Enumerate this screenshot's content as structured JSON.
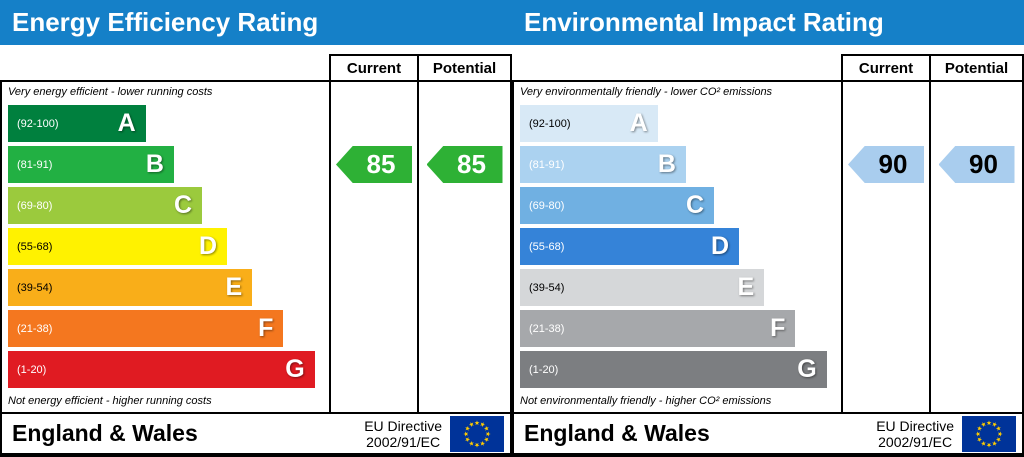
{
  "chart_data": [
    {
      "type": "bar",
      "title": "Energy Efficiency Rating",
      "categories": [
        "A (92-100)",
        "B (81-91)",
        "C (69-80)",
        "D (55-68)",
        "E (39-54)",
        "F (21-38)",
        "G (1-20)"
      ],
      "series": [
        {
          "name": "Current",
          "values": [
            85
          ],
          "band": "B"
        },
        {
          "name": "Potential",
          "values": [
            85
          ],
          "band": "B"
        }
      ],
      "ylim": [
        1,
        100
      ],
      "top_caption": "Very energy efficient - lower running costs",
      "bottom_caption": "Not energy efficient - higher running costs"
    },
    {
      "type": "bar",
      "title": "Environmental Impact Rating",
      "categories": [
        "A (92-100)",
        "B (81-91)",
        "C (69-80)",
        "D (55-68)",
        "E (39-54)",
        "F (21-38)",
        "G (1-20)"
      ],
      "series": [
        {
          "name": "Current",
          "values": [
            90
          ],
          "band": "B"
        },
        {
          "name": "Potential",
          "values": [
            90
          ],
          "band": "B"
        }
      ],
      "ylim": [
        1,
        100
      ],
      "top_caption": "Very environmentally friendly - lower CO² emissions",
      "bottom_caption": "Not environmentally friendly - higher CO² emissions"
    }
  ],
  "header_bg": "#1580c8",
  "panels": [
    {
      "title": "Energy Efficiency Rating",
      "col_current": "Current",
      "col_potential": "Potential",
      "top_caption": "Very energy efficient - lower running costs",
      "bottom_caption": "Not energy efficient - higher running costs",
      "bands": [
        {
          "range": "(92-100)",
          "letter": "A",
          "color": "#00803e",
          "range_color": "#ffffff",
          "letter_color": "#ffffff",
          "width_pct": 44
        },
        {
          "range": "(81-91)",
          "letter": "B",
          "color": "#22b043",
          "range_color": "#ffffff",
          "letter_color": "#ffffff",
          "width_pct": 53
        },
        {
          "range": "(69-80)",
          "letter": "C",
          "color": "#9bca3d",
          "range_color": "#ffffff",
          "letter_color": "#ffffff",
          "width_pct": 62
        },
        {
          "range": "(55-68)",
          "letter": "D",
          "color": "#fff200",
          "range_color": "#000000",
          "letter_color": "#ffffff",
          "width_pct": 70
        },
        {
          "range": "(39-54)",
          "letter": "E",
          "color": "#f9ae19",
          "range_color": "#000000",
          "letter_color": "#ffffff",
          "width_pct": 78
        },
        {
          "range": "(21-38)",
          "letter": "F",
          "color": "#f4771f",
          "range_color": "#ffffff",
          "letter_color": "#ffffff",
          "width_pct": 88
        },
        {
          "range": "(1-20)",
          "letter": "G",
          "color": "#e01b22",
          "range_color": "#ffffff",
          "letter_color": "#ffffff",
          "width_pct": 98
        }
      ],
      "current": {
        "value": "85",
        "color": "#2eb135",
        "text_color": "#ffffff"
      },
      "potential": {
        "value": "85",
        "color": "#2eb135",
        "text_color": "#ffffff"
      },
      "footer_region": "England & Wales",
      "footer_directive_1": "EU Directive",
      "footer_directive_2": "2002/91/EC"
    },
    {
      "title": "Environmental Impact Rating",
      "col_current": "Current",
      "col_potential": "Potential",
      "top_caption": "Very environmentally friendly - lower CO² emissions",
      "bottom_caption": "Not environmentally friendly - higher CO² emissions",
      "bands": [
        {
          "range": "(92-100)",
          "letter": "A",
          "color": "#d8e9f6",
          "range_color": "#000000",
          "letter_color": "#ffffff",
          "width_pct": 44
        },
        {
          "range": "(81-91)",
          "letter": "B",
          "color": "#abd2f0",
          "range_color": "#ffffff",
          "letter_color": "#ffffff",
          "width_pct": 53
        },
        {
          "range": "(69-80)",
          "letter": "C",
          "color": "#70b0e2",
          "range_color": "#ffffff",
          "letter_color": "#ffffff",
          "width_pct": 62
        },
        {
          "range": "(55-68)",
          "letter": "D",
          "color": "#3583d8",
          "range_color": "#ffffff",
          "letter_color": "#ffffff",
          "width_pct": 70
        },
        {
          "range": "(39-54)",
          "letter": "E",
          "color": "#d5d7d9",
          "range_color": "#000000",
          "letter_color": "#ffffff",
          "width_pct": 78
        },
        {
          "range": "(21-38)",
          "letter": "F",
          "color": "#a6a8ab",
          "range_color": "#ffffff",
          "letter_color": "#ffffff",
          "width_pct": 88
        },
        {
          "range": "(1-20)",
          "letter": "G",
          "color": "#7c7e81",
          "range_color": "#ffffff",
          "letter_color": "#ffffff",
          "width_pct": 98
        }
      ],
      "current": {
        "value": "90",
        "color": "#a9cdee",
        "text_color": "#000000"
      },
      "potential": {
        "value": "90",
        "color": "#a9cdee",
        "text_color": "#000000"
      },
      "footer_region": "England & Wales",
      "footer_directive_1": "EU Directive",
      "footer_directive_2": "2002/91/EC"
    }
  ]
}
